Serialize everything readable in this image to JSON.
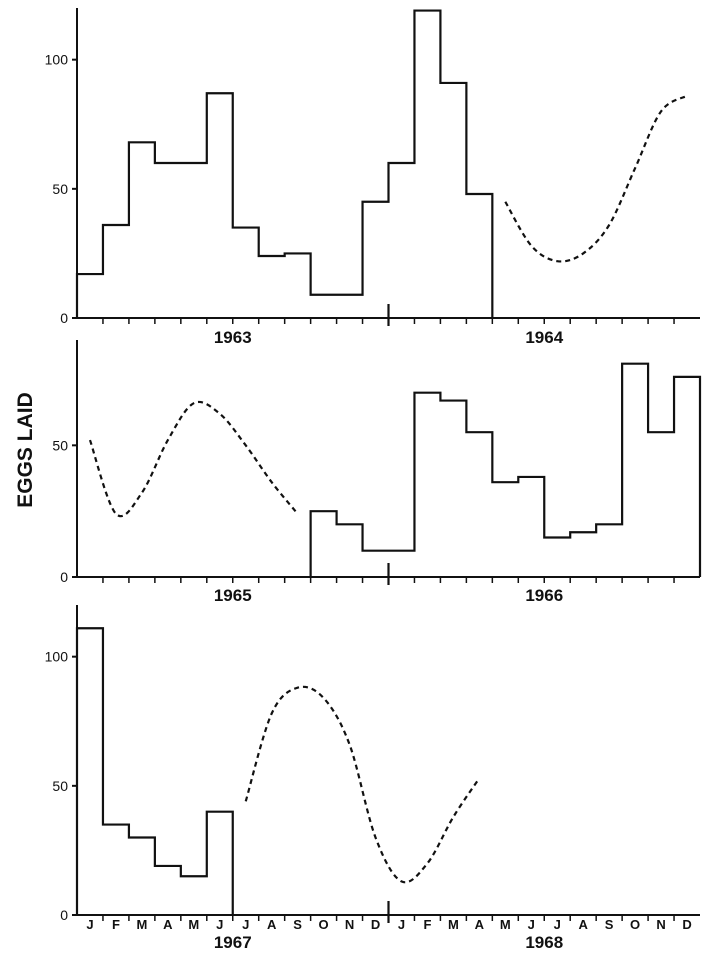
{
  "chart_data": [
    {
      "type": "bar",
      "ylabel": "EGGS LAID",
      "ylim": [
        0,
        120
      ],
      "yticks": [
        0,
        50,
        100
      ],
      "years": [
        "1963",
        "1964"
      ],
      "steps": [
        {
          "month": "1963-01",
          "value": 17
        },
        {
          "month": "1963-02",
          "value": 36
        },
        {
          "month": "1963-03",
          "value": 68
        },
        {
          "month": "1963-04",
          "value": 60
        },
        {
          "month": "1963-05",
          "value": 60
        },
        {
          "month": "1963-06",
          "value": 87
        },
        {
          "month": "1963-07",
          "value": 35
        },
        {
          "month": "1963-08",
          "value": 24
        },
        {
          "month": "1963-09",
          "value": 25
        },
        {
          "month": "1963-10",
          "value": 9
        },
        {
          "month": "1963-11",
          "value": 9
        },
        {
          "month": "1963-12",
          "value": 45
        },
        {
          "month": "1964-01",
          "value": 60
        },
        {
          "month": "1964-02",
          "value": 119
        },
        {
          "month": "1964-03",
          "value": 91
        },
        {
          "month": "1964-04",
          "value": 48
        }
      ],
      "dashed": [
        {
          "month": "1964-05",
          "value": 45
        },
        {
          "month": "1964-06",
          "value": 28
        },
        {
          "month": "1964-07",
          "value": 22
        },
        {
          "month": "1964-08",
          "value": 25
        },
        {
          "month": "1964-09",
          "value": 36
        },
        {
          "month": "1964-10",
          "value": 58
        },
        {
          "month": "1964-11",
          "value": 80
        },
        {
          "month": "1964-12",
          "value": 86
        }
      ]
    },
    {
      "type": "bar",
      "ylim": [
        0,
        90
      ],
      "yticks": [
        0,
        50
      ],
      "years": [
        "1965",
        "1966"
      ],
      "steps": [
        {
          "month": "1965-10",
          "value": 25
        },
        {
          "month": "1965-11",
          "value": 20
        },
        {
          "month": "1965-12",
          "value": 10
        },
        {
          "month": "1966-01",
          "value": 10
        },
        {
          "month": "1966-02",
          "value": 70
        },
        {
          "month": "1966-03",
          "value": 67
        },
        {
          "month": "1966-04",
          "value": 55
        },
        {
          "month": "1966-05",
          "value": 36
        },
        {
          "month": "1966-06",
          "value": 38
        },
        {
          "month": "1966-07",
          "value": 15
        },
        {
          "month": "1966-08",
          "value": 17
        },
        {
          "month": "1966-09",
          "value": 20
        },
        {
          "month": "1966-10",
          "value": 81
        },
        {
          "month": "1966-11",
          "value": 55
        },
        {
          "month": "1966-12",
          "value": 76
        }
      ],
      "dashed": [
        {
          "month": "1965-01",
          "value": 52
        },
        {
          "month": "1965-02",
          "value": 24
        },
        {
          "month": "1965-03",
          "value": 32
        },
        {
          "month": "1965-04",
          "value": 52
        },
        {
          "month": "1965-05",
          "value": 66
        },
        {
          "month": "1965-06",
          "value": 62
        },
        {
          "month": "1965-07",
          "value": 50
        },
        {
          "month": "1965-08",
          "value": 36
        },
        {
          "month": "1965-09",
          "value": 24
        }
      ]
    },
    {
      "type": "bar",
      "ylim": [
        0,
        120
      ],
      "yticks": [
        0,
        50,
        100
      ],
      "years": [
        "1967",
        "1968"
      ],
      "months": [
        "J",
        "F",
        "M",
        "A",
        "M",
        "J",
        "J",
        "A",
        "S",
        "O",
        "N",
        "D",
        "J",
        "F",
        "M",
        "A",
        "M",
        "J",
        "J",
        "A",
        "S",
        "O",
        "N",
        "D"
      ],
      "steps": [
        {
          "month": "1967-01",
          "value": 111
        },
        {
          "month": "1967-02",
          "value": 35
        },
        {
          "month": "1967-03",
          "value": 30
        },
        {
          "month": "1967-04",
          "value": 19
        },
        {
          "month": "1967-05",
          "value": 15
        },
        {
          "month": "1967-06",
          "value": 40
        }
      ],
      "dashed": [
        {
          "month": "1967-07",
          "value": 44
        },
        {
          "month": "1967-08",
          "value": 78
        },
        {
          "month": "1967-09",
          "value": 88
        },
        {
          "month": "1967-10",
          "value": 84
        },
        {
          "month": "1967-11",
          "value": 66
        },
        {
          "month": "1967-12",
          "value": 30
        },
        {
          "month": "1968-01",
          "value": 13
        },
        {
          "month": "1968-02",
          "value": 20
        },
        {
          "month": "1968-03",
          "value": 38
        },
        {
          "month": "1968-04",
          "value": 53
        }
      ]
    }
  ]
}
